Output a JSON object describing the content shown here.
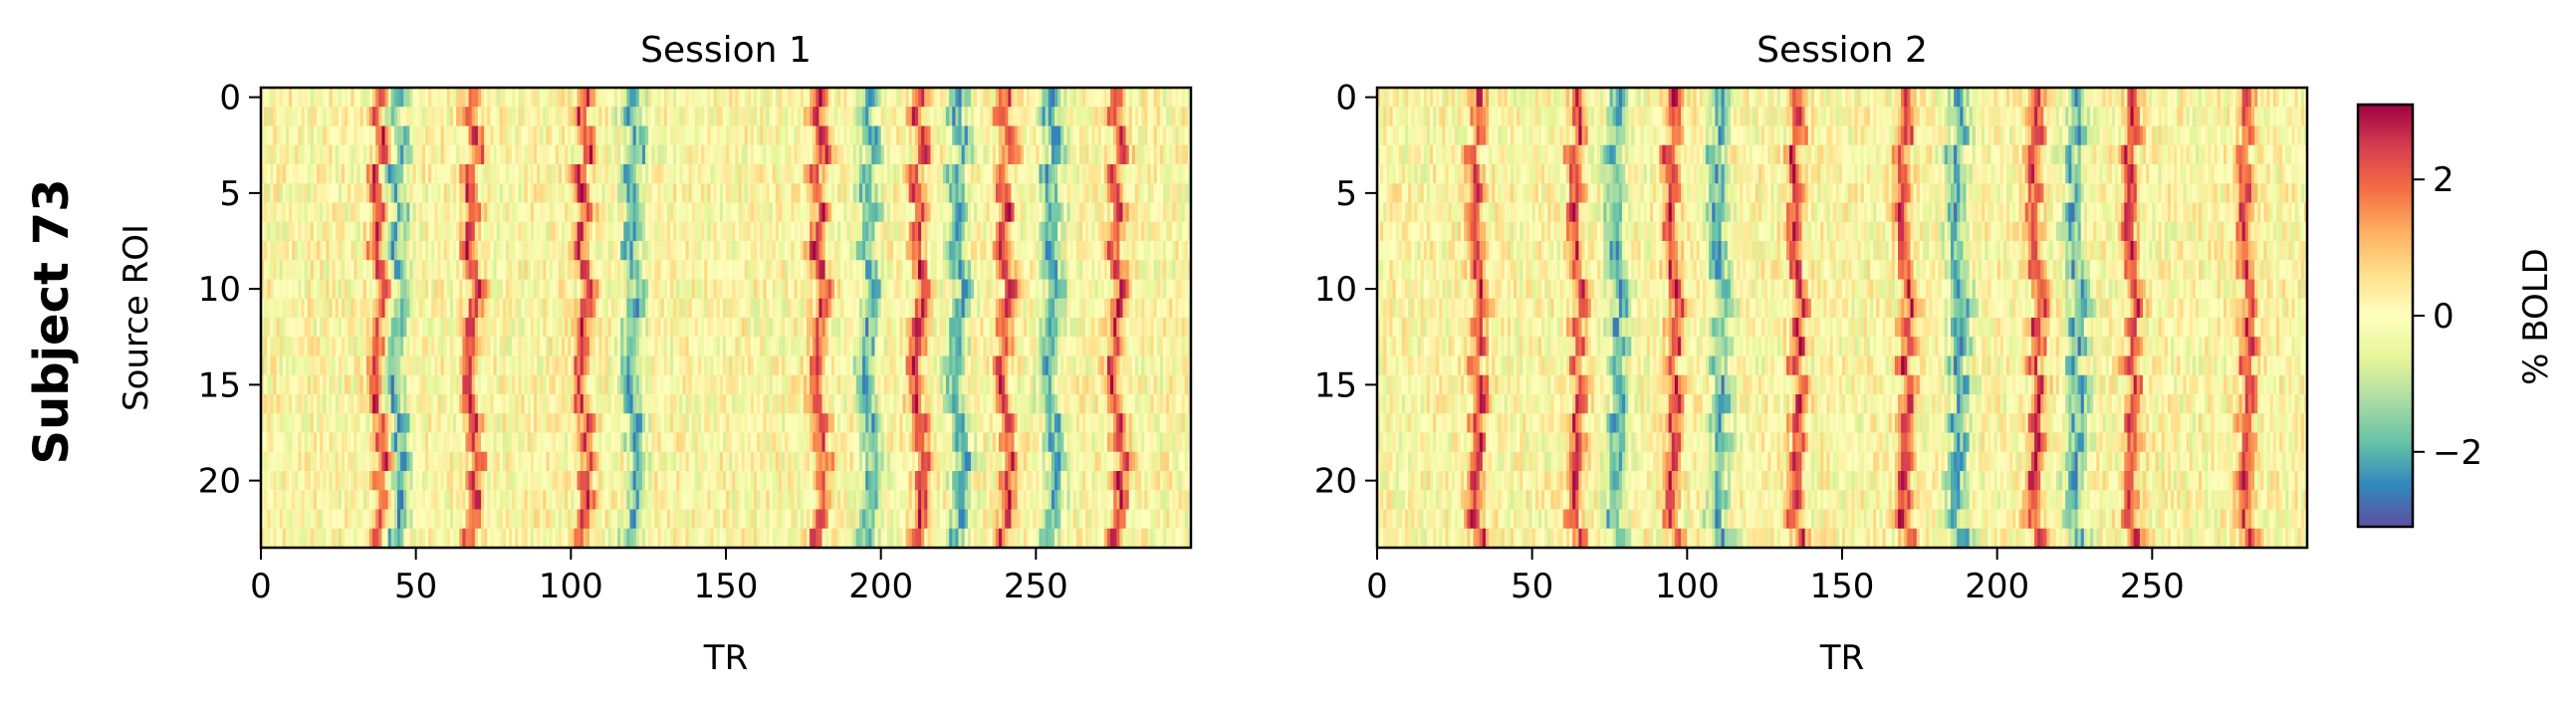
{
  "figure": {
    "row_label": "Subject 73"
  },
  "colorbar": {
    "label": "% BOLD",
    "range": [
      -3.1,
      3.1
    ],
    "ticks": [
      {
        "value": 2,
        "label": "2"
      },
      {
        "value": 0,
        "label": "0"
      },
      {
        "value": -2,
        "label": "−2"
      }
    ],
    "colormap": "Spectral_r",
    "colors": [
      "#5e4fa2",
      "#3288bd",
      "#66c2a5",
      "#abdda4",
      "#e6f598",
      "#ffffbf",
      "#fee08b",
      "#fdae61",
      "#f46d43",
      "#d53e4f",
      "#9e0142"
    ]
  },
  "chart_data": [
    {
      "type": "heatmap",
      "title": "Session 1",
      "xlabel": "TR",
      "ylabel": "Source ROI",
      "n_rois": 24,
      "n_trs": 300,
      "xlim": [
        0,
        300
      ],
      "ylim": [
        23.5,
        -0.5
      ],
      "xticks": [
        {
          "value": 0,
          "label": "0"
        },
        {
          "value": 50,
          "label": "50"
        },
        {
          "value": 100,
          "label": "100"
        },
        {
          "value": 150,
          "label": "150"
        },
        {
          "value": 200,
          "label": "200"
        },
        {
          "value": 250,
          "label": "250"
        }
      ],
      "yticks": [
        {
          "value": 0,
          "label": "0"
        },
        {
          "value": 5,
          "label": "5"
        },
        {
          "value": 10,
          "label": "10"
        },
        {
          "value": 15,
          "label": "15"
        },
        {
          "value": 20,
          "label": "20"
        }
      ],
      "approx_high_bands_tr": [
        38,
        68,
        104,
        180,
        212,
        240,
        276
      ],
      "approx_low_bands_tr": [
        44,
        120,
        196,
        225,
        255
      ]
    },
    {
      "type": "heatmap",
      "title": "Session 2",
      "xlabel": "TR",
      "ylabel": "",
      "n_rois": 24,
      "n_trs": 300,
      "xlim": [
        0,
        300
      ],
      "ylim": [
        23.5,
        -0.5
      ],
      "xticks": [
        {
          "value": 0,
          "label": "0"
        },
        {
          "value": 50,
          "label": "50"
        },
        {
          "value": 100,
          "label": "100"
        },
        {
          "value": 150,
          "label": "150"
        },
        {
          "value": 200,
          "label": "200"
        },
        {
          "value": 250,
          "label": "250"
        }
      ],
      "yticks": [
        {
          "value": 0,
          "label": "0"
        },
        {
          "value": 5,
          "label": "5"
        },
        {
          "value": 10,
          "label": "10"
        },
        {
          "value": 15,
          "label": "15"
        },
        {
          "value": 20,
          "label": "20"
        }
      ],
      "approx_high_bands_tr": [
        32,
        64,
        95,
        135,
        170,
        212,
        243,
        280
      ],
      "approx_low_bands_tr": [
        77,
        110,
        187,
        225
      ]
    }
  ]
}
